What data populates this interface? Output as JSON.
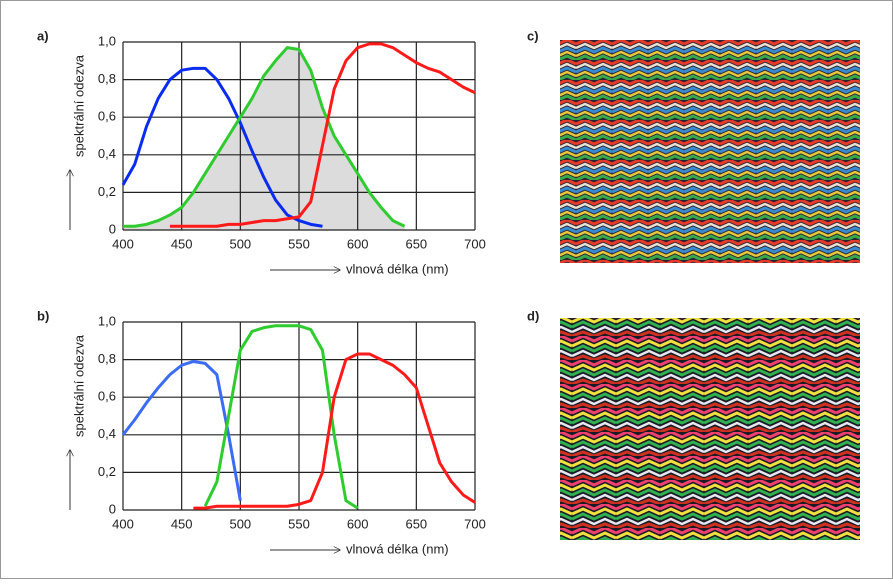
{
  "chart_data": [
    {
      "type": "line",
      "title": "a)",
      "ylabel": "spektrální odezva",
      "xlabel": "vlnová délka (nm)",
      "x": [
        400,
        410,
        420,
        430,
        440,
        450,
        460,
        470,
        480,
        490,
        500,
        510,
        520,
        530,
        540,
        550,
        560,
        570,
        580,
        590,
        600,
        610,
        620,
        630,
        640,
        650,
        660,
        670,
        680,
        690,
        700
      ],
      "xlim": [
        400,
        700
      ],
      "xticks": [
        400,
        450,
        500,
        550,
        600,
        650,
        700
      ],
      "ylim": [
        0,
        1
      ],
      "yticks": [
        0,
        {
          "value": 0.2,
          "label": "0,2"
        },
        {
          "value": 0.4,
          "label": "0,4"
        },
        {
          "value": 0.6,
          "label": "0,6"
        },
        {
          "value": 0.8,
          "label": "0,8"
        },
        {
          "value": 1,
          "label": "1,0"
        }
      ],
      "grid": true,
      "series": [
        {
          "color": "#0a2cf0",
          "values": [
            0.24,
            0.35,
            0.55,
            0.7,
            0.8,
            0.85,
            0.86,
            0.86,
            0.8,
            0.7,
            0.57,
            0.42,
            0.28,
            0.16,
            0.08,
            0.05,
            0.03,
            0.02,
            null,
            null,
            null,
            null,
            null,
            null,
            null,
            null,
            null,
            null,
            null,
            null,
            null
          ]
        },
        {
          "color": "#2fcc2f",
          "fill": "#dcdcdc",
          "values": [
            0.02,
            0.02,
            0.03,
            0.05,
            0.08,
            0.12,
            0.2,
            0.3,
            0.4,
            0.5,
            0.6,
            0.7,
            0.82,
            0.9,
            0.97,
            0.96,
            0.85,
            0.65,
            0.5,
            0.4,
            0.3,
            0.2,
            0.12,
            0.05,
            0.02,
            null,
            null,
            null,
            null,
            null,
            null
          ]
        },
        {
          "color": "#ff1a1a",
          "values": [
            null,
            null,
            null,
            null,
            0.02,
            0.02,
            0.02,
            0.02,
            0.02,
            0.03,
            0.03,
            0.04,
            0.05,
            0.05,
            0.06,
            0.07,
            0.15,
            0.45,
            0.75,
            0.9,
            0.97,
            0.99,
            0.99,
            0.97,
            0.93,
            0.89,
            0.86,
            0.84,
            0.8,
            0.76,
            0.73
          ]
        }
      ]
    },
    {
      "type": "line",
      "title": "b)",
      "ylabel": "spektrální odezva",
      "xlabel": "vlnová délka (nm)",
      "x": [
        400,
        410,
        420,
        430,
        440,
        450,
        460,
        470,
        480,
        490,
        500,
        510,
        520,
        530,
        540,
        550,
        560,
        570,
        580,
        590,
        600,
        610,
        620,
        630,
        640,
        650,
        660,
        670,
        680,
        690,
        700
      ],
      "xlim": [
        400,
        700
      ],
      "xticks": [
        400,
        450,
        500,
        550,
        600,
        650,
        700
      ],
      "ylim": [
        0,
        1
      ],
      "yticks": [
        0,
        {
          "value": 0.2,
          "label": "0,2"
        },
        {
          "value": 0.4,
          "label": "0,4"
        },
        {
          "value": 0.6,
          "label": "0,6"
        },
        {
          "value": 0.8,
          "label": "0,8"
        },
        {
          "value": 1,
          "label": "1,0"
        }
      ],
      "grid": true,
      "series": [
        {
          "color": "#3a6cf5",
          "values": [
            0.4,
            0.48,
            0.57,
            0.65,
            0.72,
            0.77,
            0.79,
            0.78,
            0.72,
            0.4,
            0.05,
            null,
            null,
            null,
            null,
            null,
            null,
            null,
            null,
            null,
            null,
            null,
            null,
            null,
            null,
            null,
            null,
            null,
            null,
            null,
            null
          ]
        },
        {
          "color": "#2fcc2f",
          "values": [
            null,
            null,
            null,
            null,
            null,
            null,
            null,
            0.02,
            0.15,
            0.5,
            0.85,
            0.95,
            0.97,
            0.98,
            0.98,
            0.98,
            0.96,
            0.85,
            0.4,
            0.05,
            0.01,
            null,
            null,
            null,
            null,
            null,
            null,
            null,
            null,
            null,
            null
          ]
        },
        {
          "color": "#ff1a1a",
          "values": [
            null,
            null,
            null,
            null,
            null,
            null,
            0.01,
            0.01,
            0.02,
            0.02,
            0.02,
            0.02,
            0.02,
            0.02,
            0.02,
            0.03,
            0.05,
            0.2,
            0.6,
            0.8,
            0.83,
            0.83,
            0.8,
            0.77,
            0.72,
            0.65,
            0.45,
            0.25,
            0.15,
            0.08,
            0.04
          ]
        }
      ]
    }
  ],
  "images": [
    {
      "label": "c)"
    },
    {
      "label": "d)"
    }
  ]
}
